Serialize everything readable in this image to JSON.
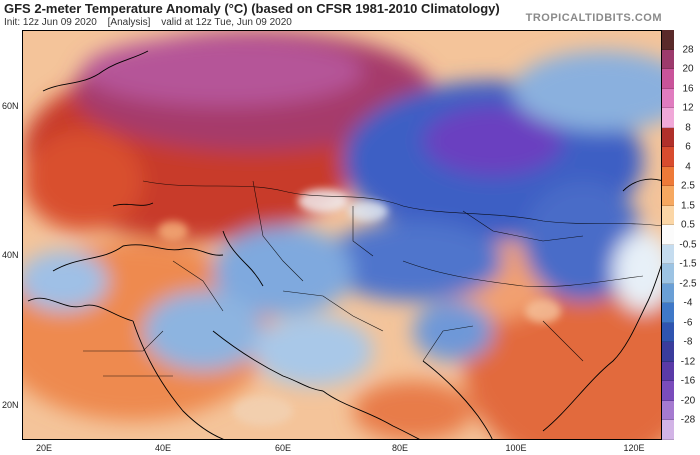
{
  "header": {
    "title": "GFS 2-meter Temperature Anomaly (°C) (based on CFSR 1981-2010 Climatology)",
    "init": "Init: 12z Jun 09 2020",
    "analysis": "[Analysis]",
    "valid": "valid at 12z Tue, Jun 09 2020",
    "brand": "TROPICALTIDBITS.COM"
  },
  "map": {
    "latitude_labels": [
      "60N",
      "40N",
      "20N"
    ],
    "longitude_labels": [
      "20E",
      "40E",
      "60E",
      "80E",
      "100E",
      "120E"
    ],
    "warm_color": "#c83a28",
    "hot_color": "#9c2f6b",
    "cold_color": "#3d5ec4",
    "very_cold_color": "#6a3fc0",
    "neutral_color": "#eeeeee",
    "border_color": "#000000"
  },
  "colorbar": {
    "labels": [
      "28",
      "20",
      "16",
      "12",
      "8",
      "6",
      "4",
      "2.5",
      "1.5",
      "0.5",
      "-0.5",
      "-1.5",
      "-2.5",
      "-4",
      "-6",
      "-8",
      "-12",
      "-16",
      "-20",
      "-28"
    ],
    "colors": [
      "#5a2a2a",
      "#9c3a6c",
      "#c9549a",
      "#e07cbf",
      "#f0a8d8",
      "#b0302a",
      "#d84c2e",
      "#ee7a38",
      "#f6a860",
      "#fbd6a6",
      "#fbfbfb",
      "#c5dcef",
      "#9cc3e3",
      "#6a9fd6",
      "#3f78c8",
      "#2f54b0",
      "#3a3c9c",
      "#5a3aa8",
      "#7a4cbc",
      "#a57ad0",
      "#d2b4e6"
    ]
  }
}
